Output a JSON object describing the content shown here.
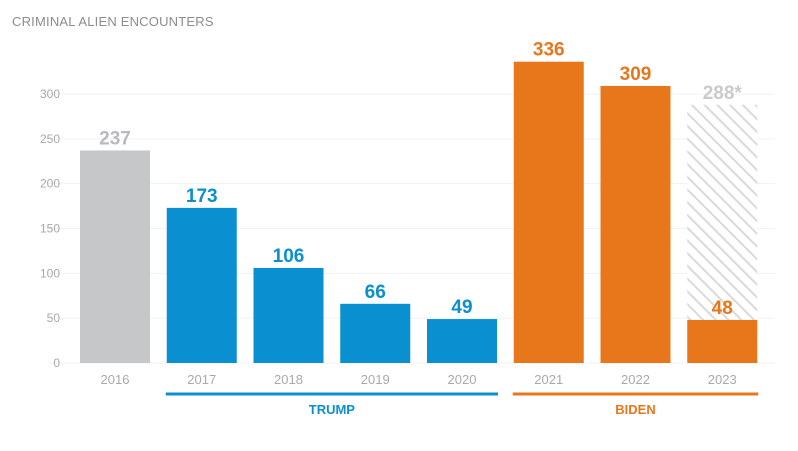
{
  "chart_data": {
    "type": "bar",
    "title": "CRIMINAL ALIEN ENCOUNTERS",
    "xlabel": "",
    "ylabel": "",
    "ylim": [
      0,
      300
    ],
    "yticks": [
      0,
      50,
      100,
      150,
      200,
      250,
      300
    ],
    "grid": true,
    "categories": [
      "2016",
      "2017",
      "2018",
      "2019",
      "2020",
      "2021",
      "2022",
      "2023"
    ],
    "values": [
      237,
      173,
      106,
      66,
      49,
      336,
      309,
      48
    ],
    "value_labels": [
      "237",
      "173",
      "106",
      "66",
      "49",
      "336",
      "309",
      "48"
    ],
    "projected": {
      "category": "2023",
      "value": 288,
      "label": "288*"
    },
    "groups": [
      {
        "name": "TRUMP",
        "categories": [
          "2017",
          "2018",
          "2019",
          "2020"
        ],
        "color": "#0a8fd1"
      },
      {
        "name": "BIDEN",
        "categories": [
          "2021",
          "2022",
          "2023"
        ],
        "color": "#e8771b"
      }
    ],
    "colors": {
      "2016": "#c6c7c9",
      "trump": "#0a8fd1",
      "biden": "#e8771b",
      "projected_label": "#c9cacc",
      "label_2016": "#b9babc"
    }
  }
}
